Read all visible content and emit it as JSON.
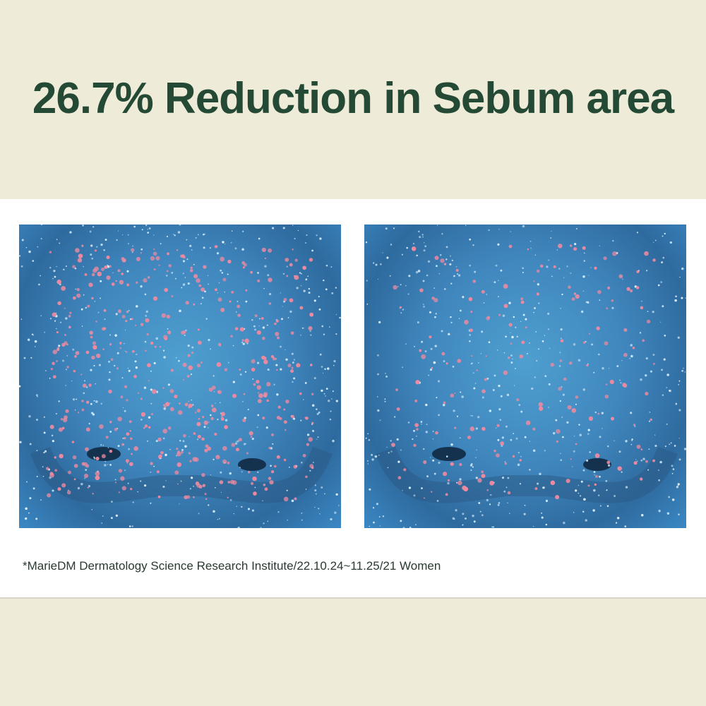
{
  "header": {
    "title": "26.7% Reduction in Sebum area"
  },
  "images": [
    {
      "id": "before",
      "description_label": ""
    },
    {
      "id": "after",
      "description_label": ""
    }
  ],
  "footnote": "*MarieDM Dermatology Science Research Institute/22.10.24~11.25/21 Women",
  "colors": {
    "title": "#244a35",
    "background": "#efebd9",
    "sebum_dot": "#f08aa0",
    "skin_blue": "#3f86bd"
  }
}
